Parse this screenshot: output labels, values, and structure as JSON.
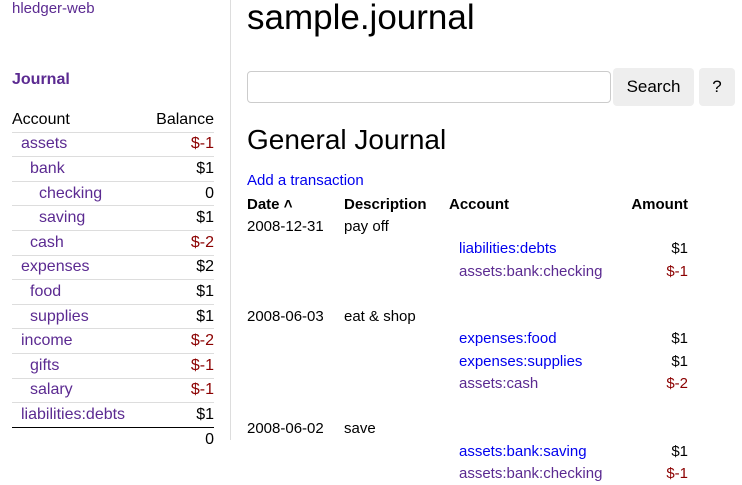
{
  "app": {
    "brand": "hledger-web",
    "journal_link": "Journal"
  },
  "sidebar": {
    "headers": {
      "account": "Account",
      "balance": "Balance"
    },
    "rows": [
      {
        "name": "assets",
        "balance": "$-1",
        "depth": 0,
        "negative": true
      },
      {
        "name": "bank",
        "balance": "$1",
        "depth": 1,
        "negative": false
      },
      {
        "name": "checking",
        "balance": "0",
        "depth": 2,
        "negative": false
      },
      {
        "name": "saving",
        "balance": "$1",
        "depth": 2,
        "negative": false
      },
      {
        "name": "cash",
        "balance": "$-2",
        "depth": 1,
        "negative": true
      },
      {
        "name": "expenses",
        "balance": "$2",
        "depth": 0,
        "negative": false
      },
      {
        "name": "food",
        "balance": "$1",
        "depth": 1,
        "negative": false
      },
      {
        "name": "supplies",
        "balance": "$1",
        "depth": 1,
        "negative": false
      },
      {
        "name": "income",
        "balance": "$-2",
        "depth": 0,
        "negative": true
      },
      {
        "name": "gifts",
        "balance": "$-1",
        "depth": 1,
        "negative": true
      },
      {
        "name": "salary",
        "balance": "$-1",
        "depth": 1,
        "negative": true
      },
      {
        "name": "liabilities:debts",
        "balance": "$1",
        "depth": 0,
        "negative": false
      }
    ],
    "total": "0"
  },
  "main": {
    "title": "sample.journal",
    "search": {
      "value": "",
      "button": "Search",
      "help": "?"
    },
    "heading": "General Journal",
    "add_link": "Add a transaction",
    "columns": {
      "date": "Date",
      "sort_icon": "chevron-up-icon",
      "description": "Description",
      "account": "Account",
      "amount": "Amount"
    },
    "transactions": [
      {
        "date": "2008-12-31",
        "description": "pay off",
        "postings": [
          {
            "account": "liabilities:debts",
            "amount": "$1",
            "visited": false
          },
          {
            "account": "assets:bank:checking",
            "amount": "$-1",
            "visited": true
          }
        ]
      },
      {
        "date": "2008-06-03",
        "description": "eat & shop",
        "postings": [
          {
            "account": "expenses:food",
            "amount": "$1",
            "visited": false
          },
          {
            "account": "expenses:supplies",
            "amount": "$1",
            "visited": false
          },
          {
            "account": "assets:cash",
            "amount": "$-2",
            "visited": true
          }
        ]
      },
      {
        "date": "2008-06-02",
        "description": "save",
        "postings": [
          {
            "account": "assets:bank:saving",
            "amount": "$1",
            "visited": false
          },
          {
            "account": "assets:bank:checking",
            "amount": "$-1",
            "visited": true
          }
        ]
      }
    ]
  },
  "colors": {
    "visited_link": "#5b2a91",
    "link": "#0000ee",
    "negative": "#8b0000"
  }
}
